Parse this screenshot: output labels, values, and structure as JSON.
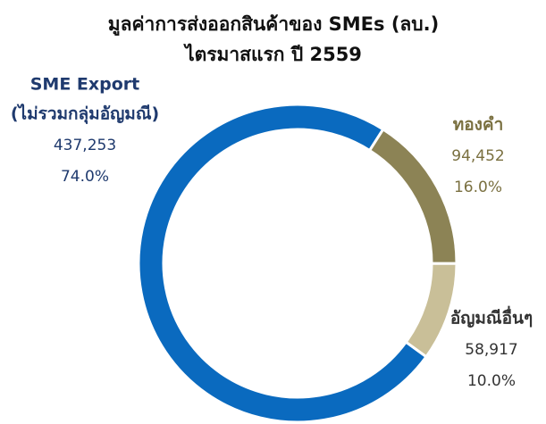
{
  "chart_data": {
    "type": "donut",
    "title": "มูลค่าการส่งออกสินค้าของ SMEs (ลบ.)",
    "subtitle": "ไตรมาสแรก ปี 2559",
    "categories": [
      [
        "SME Export",
        "(ไม่รวมกลุ่มอัญมณี)"
      ],
      [
        "ทองคำ"
      ],
      [
        "อัญมณีอื่นๆ"
      ]
    ],
    "values": [
      437253,
      94452,
      58917
    ],
    "value_labels": [
      "437,253",
      "94,452",
      "58,917"
    ],
    "percentages": [
      74.0,
      16.0,
      10.0
    ],
    "percentage_labels": [
      "74.0%",
      "16.0%",
      "10.0%"
    ],
    "colors": [
      "#0a6abf",
      "#8c8355",
      "#c9bf98"
    ],
    "label_colors": [
      "#1f3a6e",
      "#7a7040",
      "#333333"
    ]
  }
}
